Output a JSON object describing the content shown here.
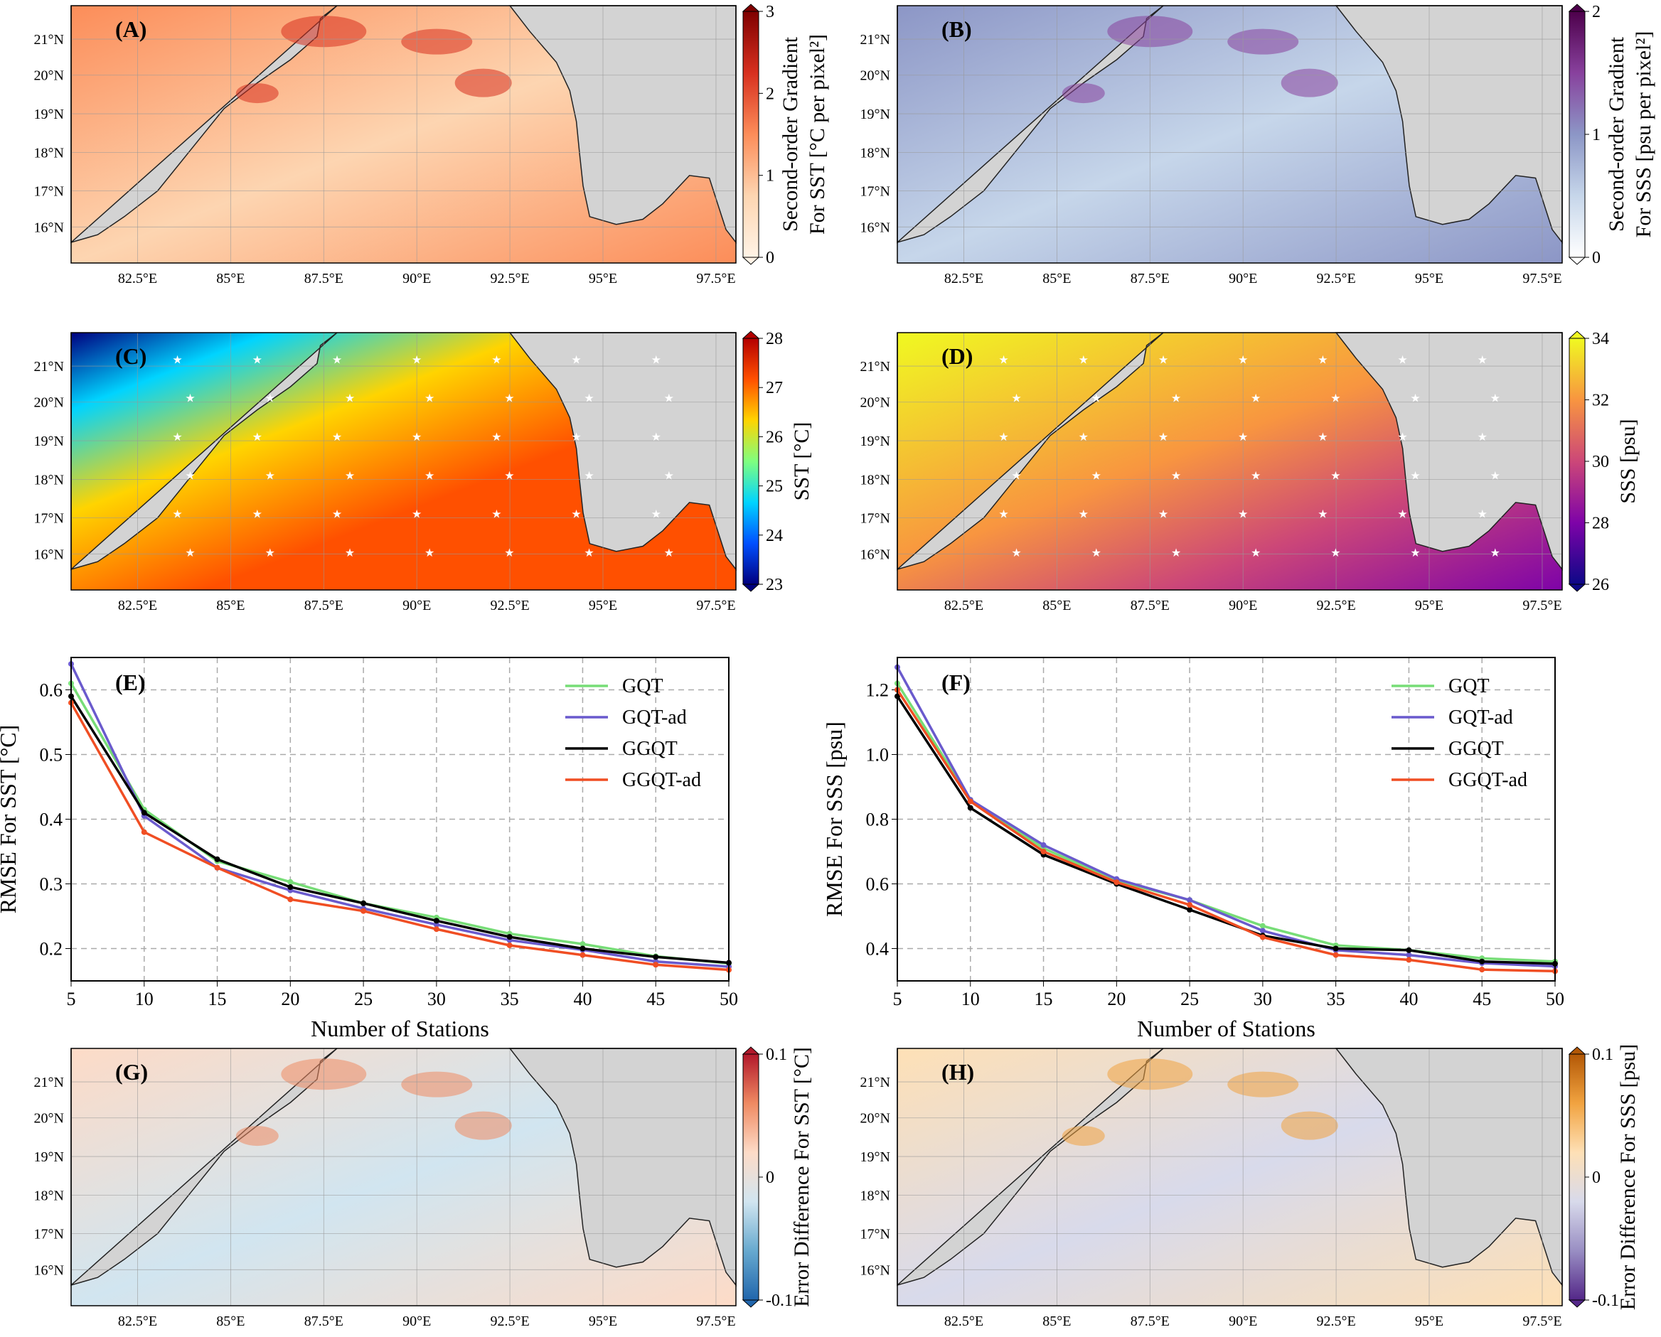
{
  "figure": {
    "map_panels": [
      {
        "id": "A",
        "label": "(A)",
        "cbar_label_lines": [
          "Second-order Gradient",
          "For SST [°C per pixel²]"
        ],
        "cbar_ticks": [
          "0",
          "1",
          "2",
          "3"
        ],
        "cbar_colors": [
          "#fff3e6",
          "#fdd5b1",
          "#fc8d59",
          "#d7301f",
          "#7f0000"
        ],
        "stars": false
      },
      {
        "id": "B",
        "label": "(B)",
        "cbar_label_lines": [
          "Second-order Gradient",
          "For SSS [psu per pixel²]"
        ],
        "cbar_ticks": [
          "0",
          "1",
          "2"
        ],
        "cbar_colors": [
          "#ffffff",
          "#c6d6ea",
          "#8c96c6",
          "#88419d",
          "#4d004b"
        ],
        "stars": false
      },
      {
        "id": "C",
        "label": "(C)",
        "cbar_label_lines": [
          "SST [°C]"
        ],
        "cbar_ticks": [
          "23",
          "24",
          "25",
          "26",
          "27",
          "28"
        ],
        "cbar_colors": [
          "#00007f",
          "#0050ff",
          "#00d4ff",
          "#7fff7f",
          "#ffd400",
          "#ff5000",
          "#b40000"
        ],
        "stars": true
      },
      {
        "id": "D",
        "label": "(D)",
        "cbar_label_lines": [
          "SSS [psu]"
        ],
        "cbar_ticks": [
          "26",
          "28",
          "30",
          "32",
          "34"
        ],
        "cbar_colors": [
          "#0d0887",
          "#7e03a8",
          "#cc4778",
          "#f89540",
          "#f0f921"
        ],
        "stars": true
      },
      {
        "id": "G",
        "label": "(G)",
        "cbar_label_lines": [
          "Error Difference For SST [°C]"
        ],
        "cbar_ticks": [
          "-0.1",
          "0",
          "0.1"
        ],
        "cbar_colors": [
          "#2166ac",
          "#67a9cf",
          "#d1e5f0",
          "#fddbc7",
          "#ef8a62",
          "#b2182b"
        ],
        "stars": false
      },
      {
        "id": "H",
        "label": "(H)",
        "cbar_label_lines": [
          "Error Difference For SSS [psu]"
        ],
        "cbar_ticks": [
          "-0.1",
          "0",
          "0.1"
        ],
        "cbar_colors": [
          "#542788",
          "#998ec3",
          "#d8daeb",
          "#fee0b6",
          "#f1a340",
          "#b35806"
        ],
        "stars": false
      }
    ],
    "lon_ticks": [
      "82.5°E",
      "85°E",
      "87.5°E",
      "90°E",
      "92.5°E",
      "95°E",
      "97.5°E"
    ],
    "lat_ticks": [
      "16°N",
      "17°N",
      "18°N",
      "19°N",
      "20°N",
      "21°N"
    ]
  },
  "chart_data": [
    {
      "type": "line",
      "panel_label": "(E)",
      "xlabel": "Number of Stations",
      "ylabel": "RMSE For SST [°C]",
      "x": [
        5,
        10,
        15,
        20,
        25,
        30,
        35,
        40,
        45,
        50
      ],
      "xlim": [
        5,
        50
      ],
      "ylim": [
        0.15,
        0.65
      ],
      "yticks": [
        0.2,
        0.3,
        0.4,
        0.5,
        0.6
      ],
      "yticklabels": [
        "0.2",
        "0.3",
        "0.4",
        "0.5",
        "0.6"
      ],
      "grid": true,
      "legend": "top-right",
      "series": [
        {
          "name": "GQT",
          "color": "#77dd77",
          "values": [
            0.61,
            0.415,
            0.335,
            0.303,
            0.27,
            0.248,
            0.223,
            0.207,
            0.188,
            0.177
          ]
        },
        {
          "name": "GQT-ad",
          "color": "#6a5acd",
          "values": [
            0.64,
            0.405,
            0.325,
            0.29,
            0.262,
            0.237,
            0.213,
            0.198,
            0.18,
            0.172
          ]
        },
        {
          "name": "GGQT",
          "color": "#000000",
          "values": [
            0.59,
            0.41,
            0.338,
            0.295,
            0.27,
            0.243,
            0.218,
            0.2,
            0.187,
            0.178
          ]
        },
        {
          "name": "GGQT-ad",
          "color": "#f04e23",
          "values": [
            0.58,
            0.38,
            0.325,
            0.276,
            0.258,
            0.23,
            0.205,
            0.19,
            0.175,
            0.167
          ]
        }
      ]
    },
    {
      "type": "line",
      "panel_label": "(F)",
      "xlabel": "Number of Stations",
      "ylabel": "RMSE For SSS [psu]",
      "x": [
        5,
        10,
        15,
        20,
        25,
        30,
        35,
        40,
        45,
        50
      ],
      "xlim": [
        5,
        50
      ],
      "ylim": [
        0.3,
        1.3
      ],
      "yticks": [
        0.4,
        0.6,
        0.8,
        1.0,
        1.2
      ],
      "yticklabels": [
        "0.4",
        "0.6",
        "0.8",
        "1.0",
        "1.2"
      ],
      "grid": true,
      "legend": "top-right",
      "series": [
        {
          "name": "GQT",
          "color": "#77dd77",
          "values": [
            1.22,
            0.86,
            0.71,
            0.61,
            0.55,
            0.47,
            0.41,
            0.395,
            0.37,
            0.36
          ]
        },
        {
          "name": "GQT-ad",
          "color": "#6a5acd",
          "values": [
            1.27,
            0.86,
            0.72,
            0.615,
            0.55,
            0.455,
            0.395,
            0.38,
            0.355,
            0.345
          ]
        },
        {
          "name": "GGQT",
          "color": "#000000",
          "values": [
            1.18,
            0.835,
            0.69,
            0.6,
            0.52,
            0.44,
            0.4,
            0.395,
            0.36,
            0.353
          ]
        },
        {
          "name": "GGQT-ad",
          "color": "#f04e23",
          "values": [
            1.2,
            0.855,
            0.7,
            0.605,
            0.535,
            0.435,
            0.38,
            0.365,
            0.335,
            0.33
          ]
        }
      ]
    }
  ]
}
